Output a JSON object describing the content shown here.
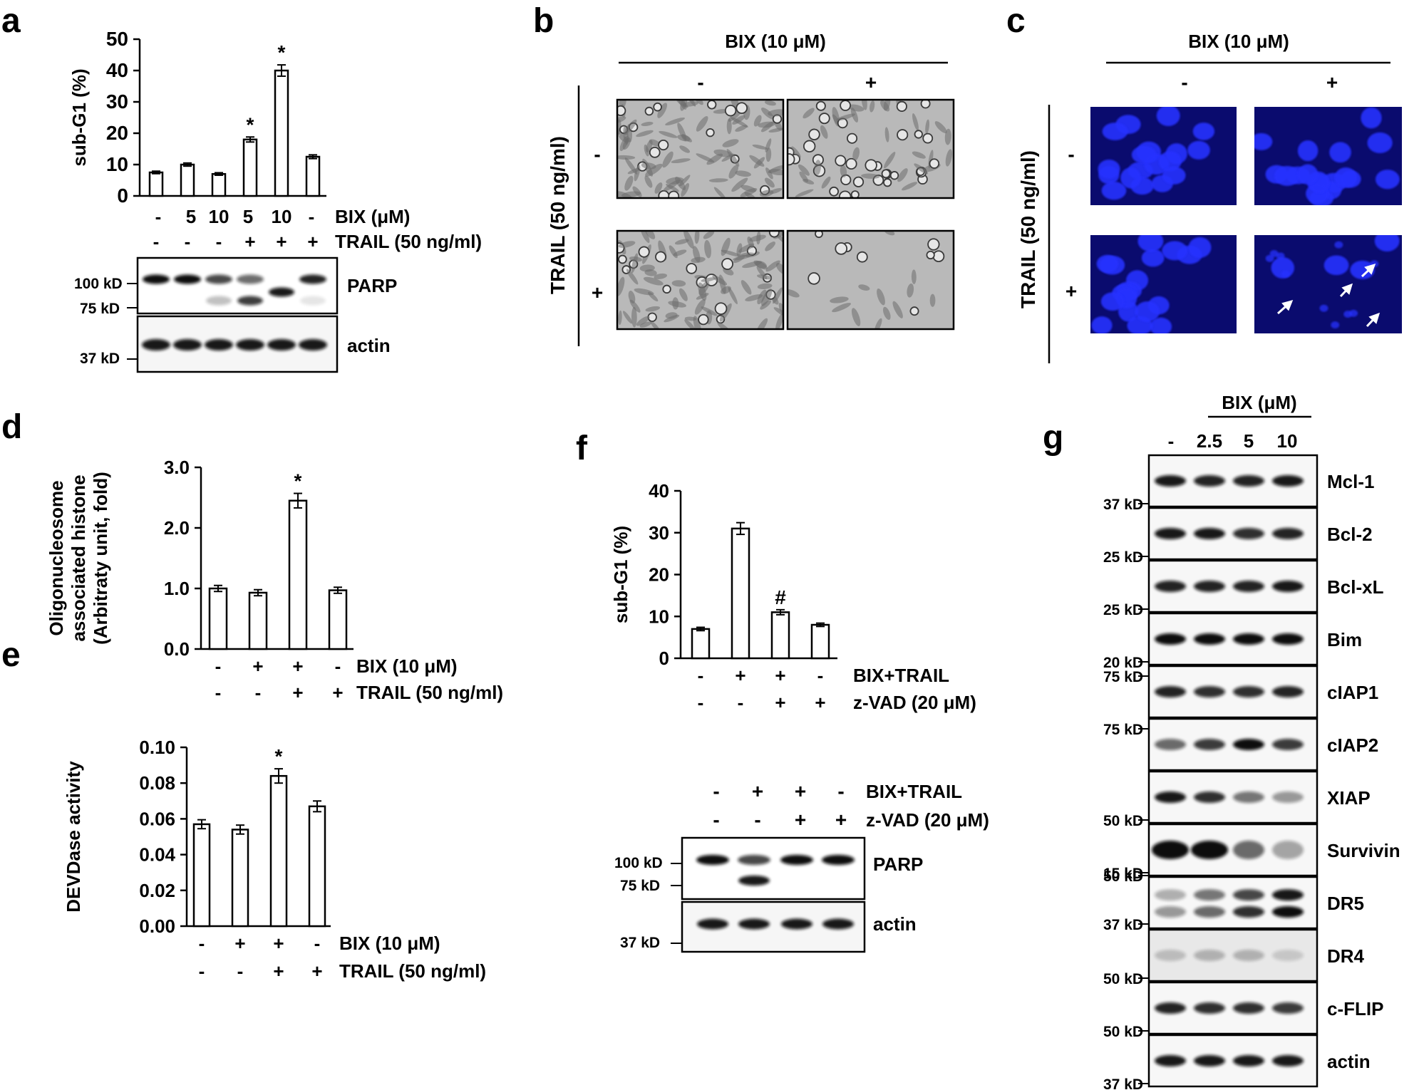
{
  "panel_letters": {
    "a": "a",
    "b": "b",
    "c": "c",
    "d": "d",
    "e": "e",
    "f": "f",
    "g": "g"
  },
  "common": {
    "minus": "-",
    "plus": "+",
    "star": "*",
    "hash": "#",
    "bix_10": "BIX (10 μM)",
    "bix_um": "BIX (μM)",
    "trail_50": "TRAIL (50 ng/ml)",
    "trail_vertical": "TRAIL (50 ng/ml)",
    "bix_trail": "BIX+TRAIL",
    "zvad": "z-VAD (20 μM)",
    "parp": "PARP",
    "actin": "actin",
    "kd100": "100 kD",
    "kd75": "75 kD",
    "kd37": "37 kD"
  },
  "colors": {
    "ink": "#000000",
    "nuclei_bg": "#0a0b6e",
    "nuclei": "#2632ff",
    "micro_bg": "#b9b9b9",
    "micro_cell": "#6d6d6d"
  },
  "panel_a": {
    "chart_data": {
      "type": "bar",
      "ylabel": "sub-G1 (%)",
      "ylim": [
        0,
        50
      ],
      "yticks": [
        "0",
        "10",
        "20",
        "30",
        "40",
        "50"
      ],
      "values": [
        7.5,
        10,
        7,
        18,
        40,
        12.5
      ],
      "errors": [
        0.4,
        0.5,
        0.4,
        0.8,
        1.8,
        0.6
      ],
      "significance": [
        "",
        "",
        "",
        "*",
        "*",
        ""
      ],
      "row1_label": "BIX (μM)",
      "row1": [
        "-",
        "5",
        "10",
        "5",
        "10",
        "-"
      ],
      "row2_label": "TRAIL (50 ng/ml)",
      "row2": [
        "-",
        "-",
        "-",
        "+",
        "+",
        "+"
      ]
    }
  },
  "panel_b": {
    "title": "BIX (10 μM)",
    "cols": [
      "-",
      "+"
    ],
    "rows": [
      "-",
      "+"
    ],
    "side": "TRAIL (50 ng/ml)"
  },
  "panel_c": {
    "title": "BIX (10 μM)",
    "cols": [
      "-",
      "+"
    ],
    "rows": [
      "-",
      "+"
    ],
    "side": "TRAIL (50 ng/ml)"
  },
  "panel_d": {
    "chart_data": {
      "type": "bar",
      "ylabel_lines": [
        "Oligonucleosome",
        "associated histone",
        "(Arbitraty unit, fold)"
      ],
      "ylim": [
        0,
        3
      ],
      "yticks": [
        "0.0",
        "1.0",
        "2.0",
        "3.0"
      ],
      "values": [
        1.0,
        0.93,
        2.45,
        0.97
      ],
      "errors": [
        0.05,
        0.05,
        0.12,
        0.05
      ],
      "significance": [
        "",
        "",
        "*",
        ""
      ],
      "row1_label": "BIX (10 μM)",
      "row1": [
        "-",
        "+",
        "+",
        "-"
      ],
      "row2_label": "TRAIL (50 ng/ml)",
      "row2": [
        "-",
        "-",
        "+",
        "+"
      ]
    }
  },
  "panel_e": {
    "chart_data": {
      "type": "bar",
      "ylabel": "DEVDase activity",
      "ylim": [
        0,
        0.1
      ],
      "yticks": [
        "0.00",
        "0.02",
        "0.04",
        "0.06",
        "0.08",
        "0.10"
      ],
      "values": [
        0.057,
        0.054,
        0.084,
        0.067
      ],
      "errors": [
        0.0025,
        0.0025,
        0.004,
        0.003
      ],
      "significance": [
        "",
        "",
        "*",
        ""
      ],
      "row1_label": "BIX (10 μM)",
      "row1": [
        "-",
        "+",
        "+",
        "-"
      ],
      "row2_label": "TRAIL (50 ng/ml)",
      "row2": [
        "-",
        "-",
        "+",
        "+"
      ]
    }
  },
  "panel_f": {
    "chart_data": {
      "type": "bar",
      "ylabel": "sub-G1 (%)",
      "ylim": [
        0,
        40
      ],
      "yticks": [
        "0",
        "10",
        "20",
        "30",
        "40"
      ],
      "values": [
        7,
        31,
        11,
        8
      ],
      "errors": [
        0.4,
        1.4,
        0.6,
        0.4
      ],
      "significance": [
        "",
        "",
        "#",
        ""
      ],
      "row1_label": "BIX+TRAIL",
      "row1": [
        "-",
        "+",
        "+",
        "-"
      ],
      "row2_label": "z-VAD (20 μM)",
      "row2": [
        "-",
        "-",
        "+",
        "+"
      ]
    },
    "blot_row1": [
      "-",
      "+",
      "+",
      "-"
    ],
    "blot_row2": [
      "-",
      "-",
      "+",
      "+"
    ]
  },
  "panel_g": {
    "title": "BIX (μM)",
    "lanes": [
      "-",
      "2.5",
      "5",
      "10"
    ],
    "blots": [
      {
        "label": "Mcl-1",
        "markers": [
          "37 kD"
        ]
      },
      {
        "label": "Bcl-2",
        "markers": [
          "25 kD"
        ]
      },
      {
        "label": "Bcl-xL",
        "markers": [
          "25 kD"
        ]
      },
      {
        "label": "Bim",
        "markers": [
          "20 kD"
        ]
      },
      {
        "label": "cIAP1",
        "markers": [
          "75 kD"
        ]
      },
      {
        "label": "cIAP2",
        "markers": [
          "75 kD"
        ]
      },
      {
        "label": "XIAP",
        "markers": [
          "50 kD"
        ]
      },
      {
        "label": "Survivin",
        "markers": [
          "15 kD"
        ]
      },
      {
        "label": "DR5",
        "markers": [
          "50 kD",
          "37 kD"
        ]
      },
      {
        "label": "DR4",
        "markers": [
          "50 kD"
        ]
      },
      {
        "label": "c-FLIP",
        "markers": [
          "50 kD"
        ]
      },
      {
        "label": "actin",
        "markers": [
          "37 kD"
        ]
      }
    ]
  }
}
